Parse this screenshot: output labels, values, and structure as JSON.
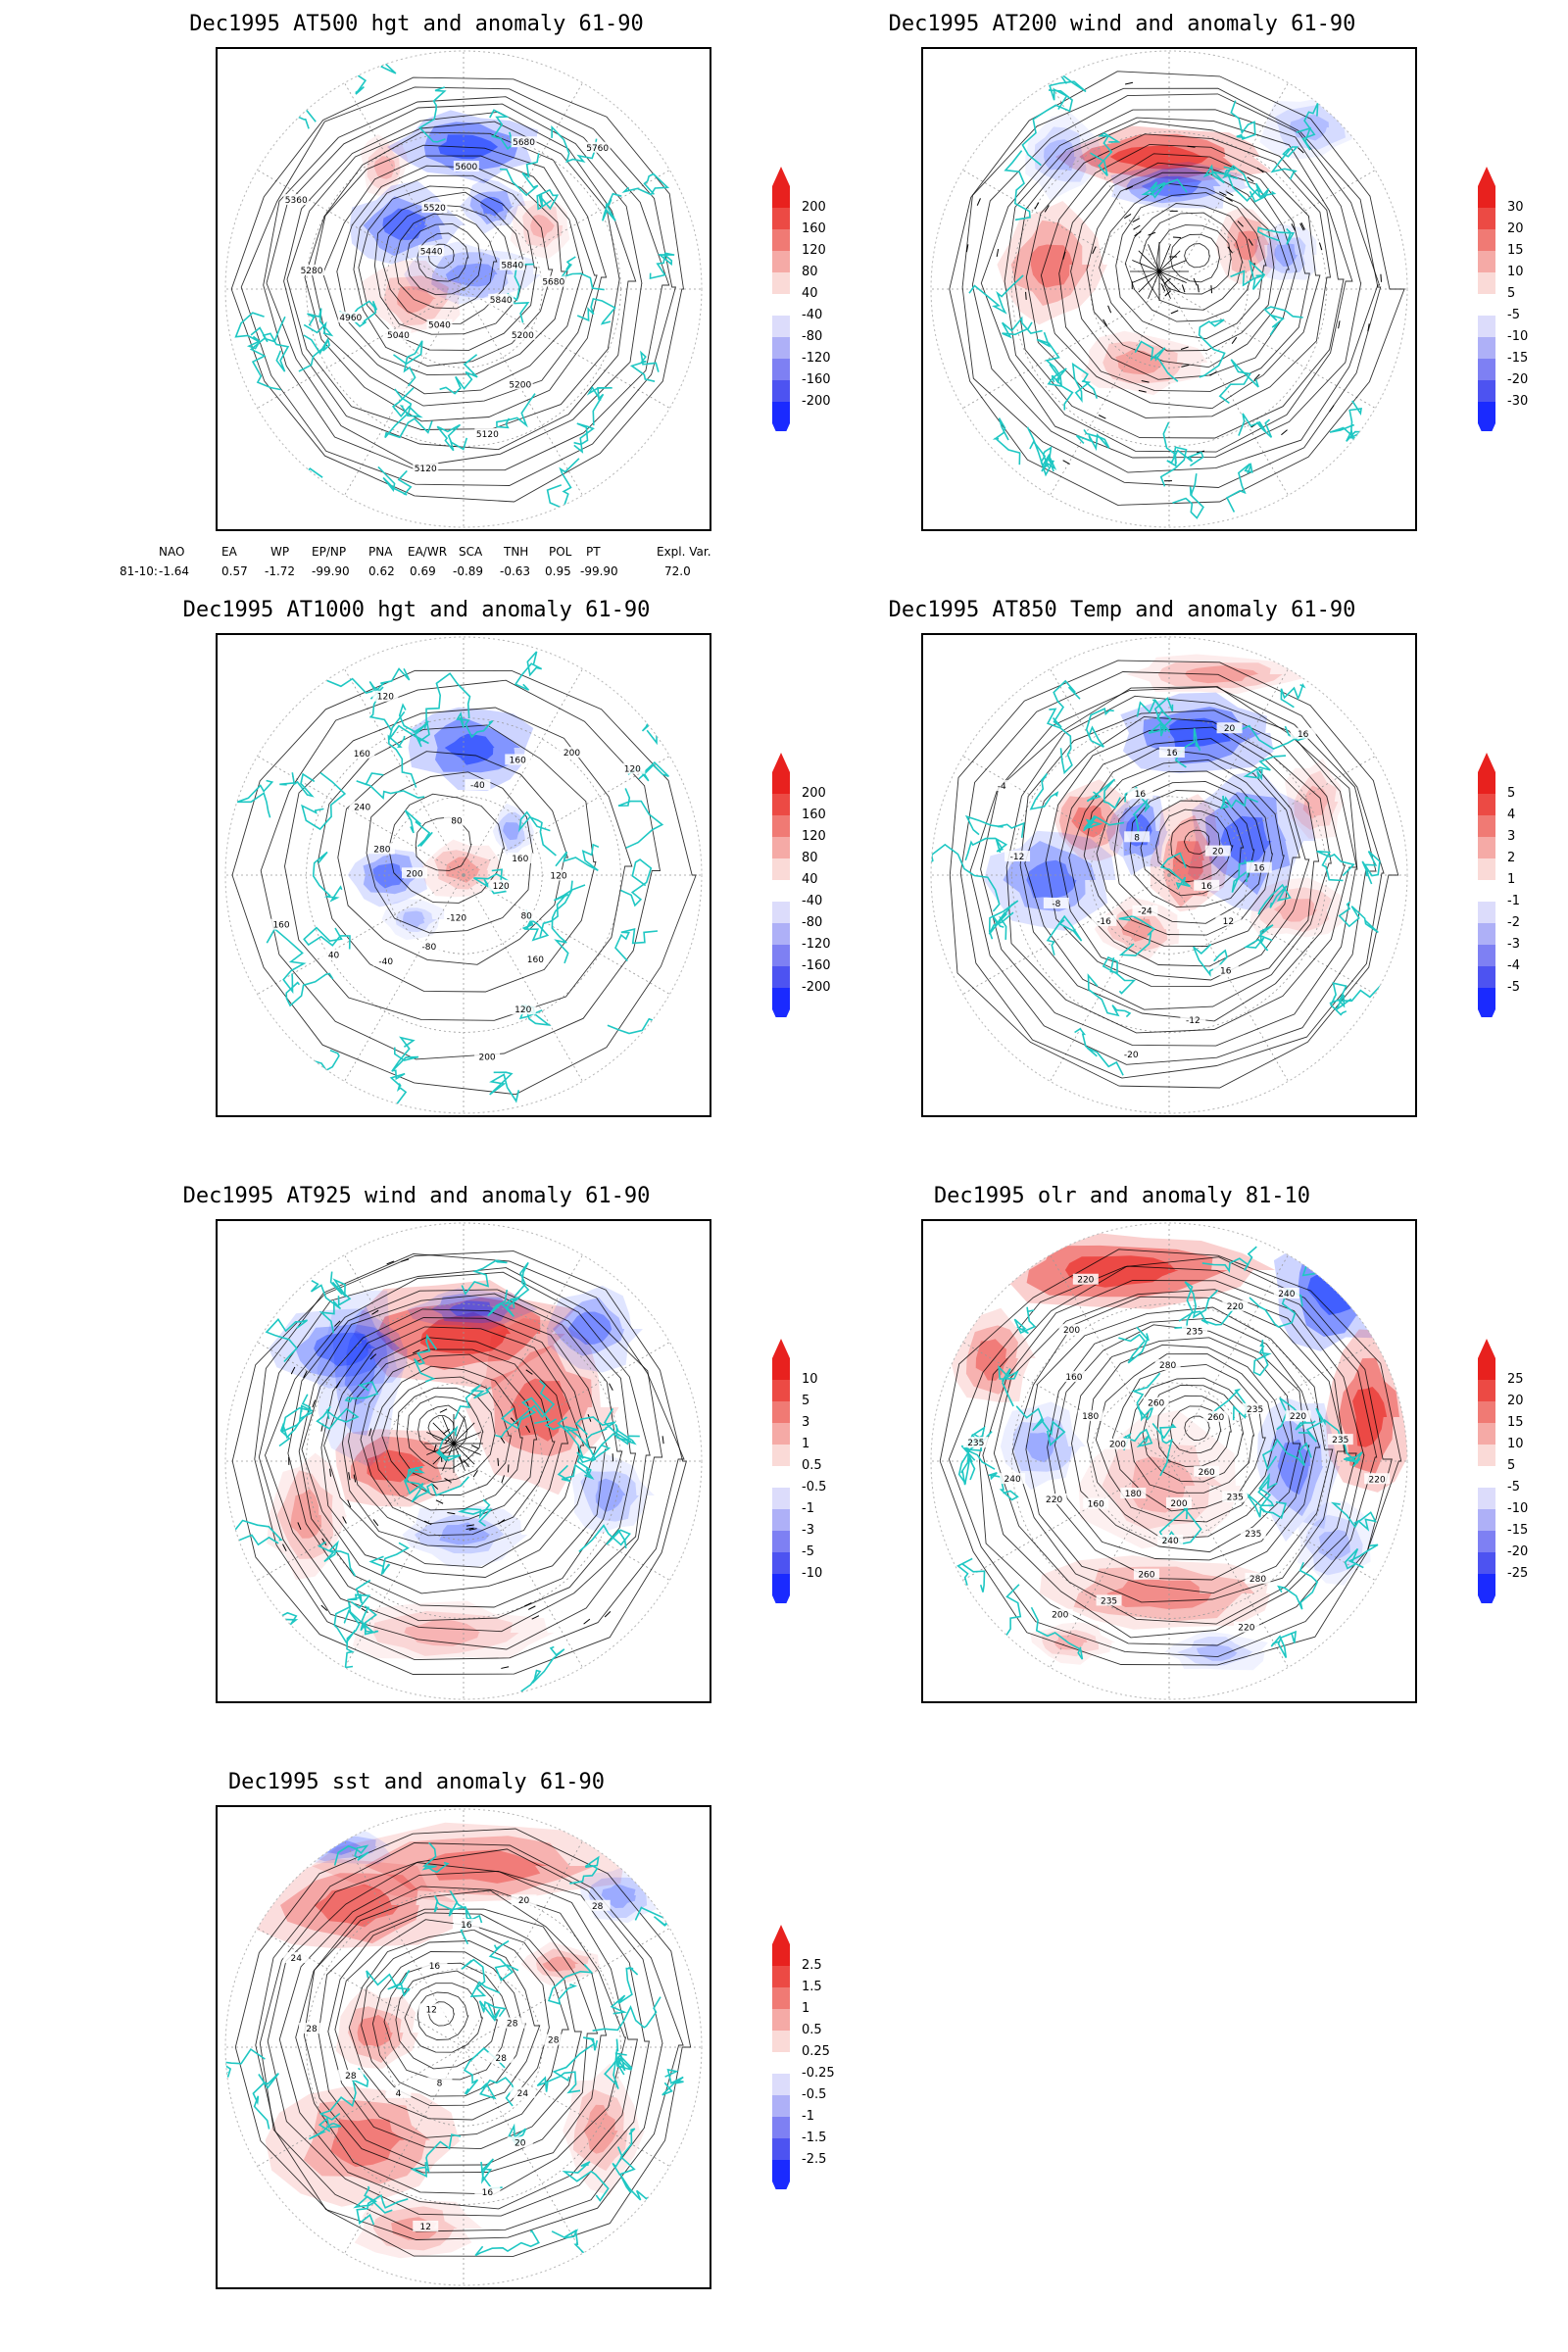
{
  "colors": {
    "negative": "#1a3dff",
    "positive": "#e8231e",
    "coast": "#1fc7c3",
    "contour": "#000000"
  },
  "panels": [
    {
      "id": "at500",
      "title": "Dec1995 AT500 hgt and anomaly 61-90",
      "levels": [
        "200",
        "160",
        "120",
        "80",
        "40",
        "-40",
        "-80",
        "-120",
        "-160",
        "-200"
      ],
      "contour_labels": [
        "5840",
        "5200",
        "5200",
        "5120",
        "5120",
        "5040",
        "5040",
        "4960",
        "5280",
        "5360",
        "5440",
        "5520",
        "5600",
        "5680",
        "5760",
        "5840",
        "5680"
      ]
    },
    {
      "id": "at200",
      "title": "Dec1995 AT200 wind and anomaly 61-90",
      "levels": [
        "30",
        "20",
        "15",
        "10",
        "5",
        "-5",
        "-10",
        "-15",
        "-20",
        "-30"
      ],
      "contour_labels": []
    },
    {
      "id": "at1000",
      "title": "Dec1995 AT1000 hgt and anomaly 61-90",
      "levels": [
        "200",
        "160",
        "120",
        "80",
        "40",
        "-40",
        "-80",
        "-120",
        "-160",
        "-200"
      ],
      "contour_labels": [
        "120",
        "80",
        "160",
        "120",
        "200",
        "-120",
        "-80",
        "-40",
        "40",
        "160",
        "200",
        "280",
        "240",
        "160",
        "120",
        "80",
        "-40",
        "160",
        "200",
        "120",
        "160",
        "120"
      ]
    },
    {
      "id": "at850",
      "title": "Dec1995 AT850 Temp and anomaly 61-90",
      "levels": [
        "5",
        "4",
        "3",
        "2",
        "1",
        "-1",
        "-2",
        "-3",
        "-4",
        "-5"
      ],
      "contour_labels": [
        "16",
        "12",
        "16",
        "-12",
        "-20",
        "-24",
        "-16",
        "-8",
        "-12",
        "-4",
        "8",
        "16",
        "16",
        "20",
        "16",
        "20",
        "16"
      ]
    },
    {
      "id": "at925",
      "title": "Dec1995 AT925 wind and anomaly 61-90",
      "levels": [
        "10",
        "5",
        "3",
        "1",
        "0.5",
        "-0.5",
        "-1",
        "-3",
        "-5",
        "-10"
      ],
      "contour_labels": []
    },
    {
      "id": "olr",
      "title": "Dec1995 olr and anomaly 81-10",
      "levels": [
        "25",
        "20",
        "15",
        "10",
        "5",
        "-5",
        "-10",
        "-15",
        "-20",
        "-25"
      ],
      "contour_labels": [
        "260",
        "235",
        "235",
        "280",
        "220",
        "200",
        "240",
        "260",
        "235",
        "200",
        "180",
        "160",
        "220",
        "240",
        "235",
        "200",
        "180",
        "160",
        "200",
        "220",
        "260",
        "280",
        "235",
        "220",
        "240",
        "260",
        "235",
        "220",
        "235",
        "220"
      ]
    },
    {
      "id": "sst",
      "title": "Dec1995 sst and anomaly 61-90",
      "levels": [
        "2.5",
        "1.5",
        "1",
        "0.5",
        "0.25",
        "-0.25",
        "-0.5",
        "-1",
        "-1.5",
        "-2.5"
      ],
      "contour_labels": [
        "28",
        "24",
        "20",
        "16",
        "12",
        "8",
        "4",
        "28",
        "28",
        "24",
        "12",
        "16",
        "16",
        "20",
        "28",
        "28",
        "28"
      ]
    }
  ],
  "teleconnections": {
    "headers": [
      "NAO",
      "EA",
      "WP",
      "EP/NP",
      "PNA",
      "EA/WR",
      "SCA",
      "TNH",
      "POL",
      "PT",
      "Expl. Var."
    ],
    "row_label": "81-10:",
    "values": [
      "-1.64",
      "0.57",
      "-1.72",
      "-99.90",
      "0.62",
      "0.69",
      "-0.89",
      "-0.63",
      "0.95",
      "-99.90",
      "72.0"
    ]
  }
}
